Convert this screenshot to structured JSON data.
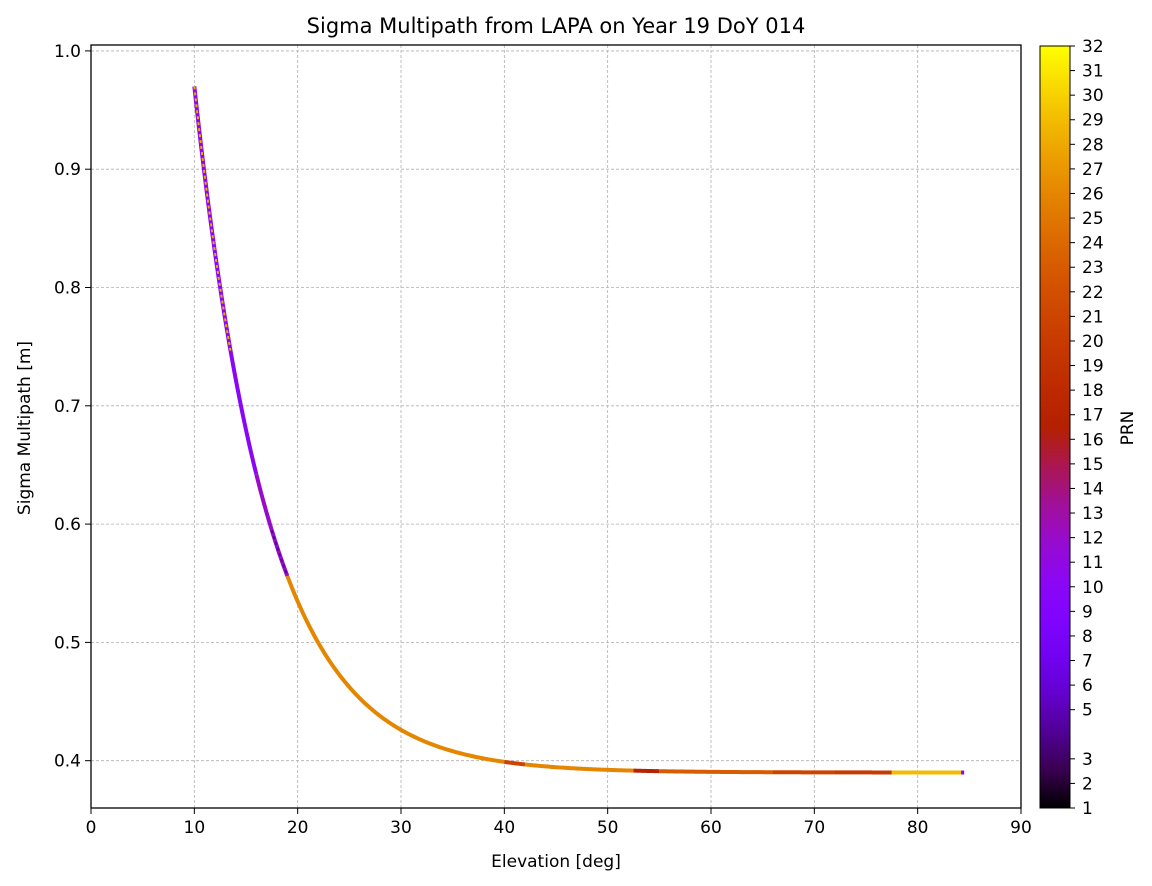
{
  "chart_data": {
    "type": "scatter",
    "title": "Sigma Multipath from LAPA on Year 19 DoY 014",
    "xlabel": "Elevation [deg]",
    "ylabel": "Sigma Multipath [m]",
    "xlim": [
      0,
      90
    ],
    "ylim": [
      0.36,
      1.005
    ],
    "xticks": [
      "0",
      "10",
      "20",
      "30",
      "40",
      "50",
      "60",
      "70",
      "80",
      "90"
    ],
    "yticks": [
      "0.4",
      "0.5",
      "0.6",
      "0.7",
      "0.8",
      "0.9",
      "1.0"
    ],
    "grid": true,
    "grid_style": "dashed",
    "colorbar": {
      "label": "PRN",
      "colormap": "gnuplot",
      "range": [
        1,
        32
      ],
      "ticks": [
        "1",
        "2",
        "3",
        "5",
        "6",
        "7",
        "8",
        "9",
        "10",
        "11",
        "12",
        "13",
        "14",
        "15",
        "16",
        "17",
        "18",
        "19",
        "20",
        "21",
        "22",
        "23",
        "24",
        "25",
        "26",
        "27",
        "28",
        "29",
        "30",
        "31",
        "32"
      ]
    },
    "curve_model": "sigma = 0.39 + 0.58 * exp(-(elevation - 10) / 7.2)",
    "segments": [
      {
        "x": [
          10.0,
          16.0
        ],
        "prn": 10
      },
      {
        "x": [
          16.0,
          19.0
        ],
        "prn": 12
      },
      {
        "x": [
          19.0,
          22.0
        ],
        "prn": 26
      },
      {
        "x": [
          22.0,
          40.0
        ],
        "prn": 26
      },
      {
        "x": [
          40.0,
          42.0
        ],
        "prn": 21
      },
      {
        "x": [
          42.0,
          52.5
        ],
        "prn": 26
      },
      {
        "x": [
          52.5,
          55.0
        ],
        "prn": 17
      },
      {
        "x": [
          55.0,
          66.0
        ],
        "prn": 23
      },
      {
        "x": [
          66.0,
          72.0
        ],
        "prn": 21
      },
      {
        "x": [
          72.0,
          77.5
        ],
        "prn": 20
      },
      {
        "x": [
          77.5,
          84.2
        ],
        "prn": 29
      },
      {
        "x": [
          84.2,
          84.5
        ],
        "prn": 11
      }
    ],
    "overlay_segments": [
      {
        "x": [
          10.0,
          13.5
        ],
        "prn": 28
      },
      {
        "x": [
          17.5,
          19.0
        ],
        "prn": 4
      }
    ]
  }
}
